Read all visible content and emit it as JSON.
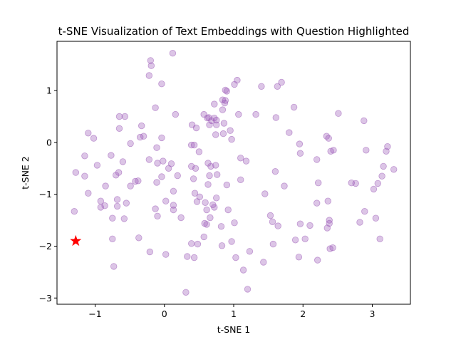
{
  "chart_data": {
    "type": "scatter",
    "title": "t-SNE Visualization of Text Embeddings with Question Highlighted",
    "xlabel": "t-SNE  1",
    "ylabel": "t-SNE  2",
    "xlim": [
      -1.55,
      3.55
    ],
    "ylim": [
      -3.12,
      1.95
    ],
    "xticks": [
      -1,
      0,
      1,
      2,
      3
    ],
    "yticks": [
      -3,
      -2,
      -1,
      0,
      1
    ],
    "grid": false,
    "legend": "none",
    "colors": {
      "points": "#9b59b6",
      "highlight": "#ff0000"
    },
    "series": [
      {
        "marker": "circle",
        "points": [
          [
            0.12,
            1.72
          ],
          [
            -0.2,
            1.58
          ],
          [
            -0.19,
            1.48
          ],
          [
            -0.22,
            1.29
          ],
          [
            -0.04,
            1.13
          ],
          [
            -0.13,
            0.67
          ],
          [
            0.16,
            0.54
          ],
          [
            -0.65,
            0.5
          ],
          [
            -0.57,
            0.5
          ],
          [
            -0.65,
            0.27
          ],
          [
            -0.33,
            0.32
          ],
          [
            -1.1,
            0.18
          ],
          [
            -1.02,
            0.08
          ],
          [
            -0.35,
            0.1
          ],
          [
            -0.3,
            0.12
          ],
          [
            -0.49,
            -0.02
          ],
          [
            -0.04,
            0.09
          ],
          [
            -0.11,
            -0.1
          ],
          [
            -0.22,
            -0.33
          ],
          [
            -1.15,
            -0.26
          ],
          [
            -0.77,
            -0.25
          ],
          [
            -0.6,
            -0.37
          ],
          [
            -0.1,
            -0.4
          ],
          [
            -0.02,
            -0.36
          ],
          [
            0.1,
            -0.41
          ],
          [
            -0.97,
            -0.44
          ],
          [
            -1.28,
            -0.58
          ],
          [
            -0.66,
            -0.58
          ],
          [
            -0.7,
            -0.63
          ],
          [
            -1.15,
            -0.65
          ],
          [
            -0.04,
            -0.66
          ],
          [
            0.06,
            -0.5
          ],
          [
            0.19,
            -0.64
          ],
          [
            -0.38,
            -0.74
          ],
          [
            -0.42,
            -0.75
          ],
          [
            -0.85,
            -0.84
          ],
          [
            -0.49,
            -0.84
          ],
          [
            -0.11,
            -0.77
          ],
          [
            -1.1,
            -0.98
          ],
          [
            0.13,
            -0.94
          ],
          [
            -0.68,
            -1.1
          ],
          [
            -0.92,
            -1.13
          ],
          [
            -0.55,
            -1.17
          ],
          [
            0.02,
            -1.13
          ],
          [
            -0.92,
            -1.25
          ],
          [
            -0.86,
            -1.22
          ],
          [
            -0.68,
            -1.23
          ],
          [
            0.13,
            -1.21
          ],
          [
            -0.13,
            -1.28
          ],
          [
            -1.3,
            -1.33
          ],
          [
            -0.75,
            -1.46
          ],
          [
            -0.58,
            -1.47
          ],
          [
            -0.1,
            -1.42
          ],
          [
            0.13,
            -1.3
          ],
          [
            0.24,
            -1.45
          ],
          [
            -0.37,
            -1.84
          ],
          [
            -0.75,
            -1.86
          ],
          [
            -0.21,
            -2.11
          ],
          [
            0.02,
            -2.16
          ],
          [
            -0.73,
            -2.39
          ],
          [
            0.33,
            -2.2
          ],
          [
            0.43,
            -2.22
          ],
          [
            0.31,
            -2.89
          ],
          [
            0.4,
            0.34
          ],
          [
            0.46,
            0.28
          ],
          [
            0.43,
            -0.05
          ],
          [
            0.39,
            -0.05
          ],
          [
            0.5,
            -0.18
          ],
          [
            0.39,
            -0.46
          ],
          [
            0.45,
            -0.5
          ],
          [
            0.42,
            -0.7
          ],
          [
            0.44,
            -0.98
          ],
          [
            0.51,
            -1.05
          ],
          [
            0.47,
            -1.14
          ],
          [
            0.39,
            -1.95
          ],
          [
            0.48,
            -1.96
          ],
          [
            0.57,
            0.54
          ],
          [
            0.62,
            0.47
          ],
          [
            0.64,
            0.48
          ],
          [
            0.65,
            0.34
          ],
          [
            0.72,
            0.47
          ],
          [
            0.68,
            0.42
          ],
          [
            0.72,
            0.74
          ],
          [
            0.75,
            0.43
          ],
          [
            0.75,
            0.34
          ],
          [
            0.86,
            0.37
          ],
          [
            0.84,
            0.63
          ],
          [
            0.84,
            0.82
          ],
          [
            0.88,
            0.81
          ],
          [
            0.88,
            1.01
          ],
          [
            0.9,
            0.99
          ],
          [
            0.87,
            0.76
          ],
          [
            0.74,
            0.15
          ],
          [
            0.85,
            0.17
          ],
          [
            0.95,
            0.23
          ],
          [
            0.97,
            0.06
          ],
          [
            1.01,
            1.12
          ],
          [
            1.05,
            1.2
          ],
          [
            1.07,
            0.54
          ],
          [
            1.1,
            -0.3
          ],
          [
            1.18,
            -0.36
          ],
          [
            1.1,
            -0.72
          ],
          [
            0.9,
            -0.82
          ],
          [
            0.63,
            -0.4
          ],
          [
            0.67,
            -0.46
          ],
          [
            0.74,
            -0.44
          ],
          [
            0.76,
            -0.62
          ],
          [
            0.65,
            -0.64
          ],
          [
            0.63,
            -0.81
          ],
          [
            0.75,
            -1.07
          ],
          [
            0.59,
            -1.16
          ],
          [
            0.7,
            -1.2
          ],
          [
            0.72,
            -1.25
          ],
          [
            0.61,
            -1.3
          ],
          [
            0.66,
            -1.45
          ],
          [
            0.61,
            -1.58
          ],
          [
            0.58,
            -1.56
          ],
          [
            0.82,
            -1.62
          ],
          [
            0.92,
            -1.3
          ],
          [
            0.57,
            -1.82
          ],
          [
            0.83,
            -1.99
          ],
          [
            0.97,
            -1.91
          ],
          [
            1.01,
            -1.55
          ],
          [
            1.03,
            -2.22
          ],
          [
            1.23,
            -2.1
          ],
          [
            1.14,
            -2.46
          ],
          [
            1.2,
            -2.83
          ],
          [
            1.43,
            -2.31
          ],
          [
            1.32,
            0.54
          ],
          [
            1.4,
            1.08
          ],
          [
            1.61,
            0.48
          ],
          [
            1.63,
            1.08
          ],
          [
            1.69,
            1.16
          ],
          [
            1.8,
            0.19
          ],
          [
            1.87,
            0.68
          ],
          [
            1.95,
            -0.03
          ],
          [
            1.96,
            -0.21
          ],
          [
            1.6,
            -0.56
          ],
          [
            1.73,
            -0.84
          ],
          [
            1.45,
            -0.99
          ],
          [
            1.53,
            -1.41
          ],
          [
            1.56,
            -1.53
          ],
          [
            1.64,
            -1.61
          ],
          [
            1.57,
            -1.96
          ],
          [
            1.89,
            -1.88
          ],
          [
            1.96,
            -1.57
          ],
          [
            2.03,
            -1.86
          ],
          [
            2.1,
            -1.6
          ],
          [
            1.94,
            -2.21
          ],
          [
            2.21,
            -2.27
          ],
          [
            2.2,
            -1.17
          ],
          [
            2.22,
            -0.78
          ],
          [
            2.2,
            -0.33
          ],
          [
            2.34,
            0.12
          ],
          [
            2.37,
            0.08
          ],
          [
            2.51,
            0.56
          ],
          [
            2.4,
            -0.17
          ],
          [
            2.44,
            -0.15
          ],
          [
            2.36,
            -1.13
          ],
          [
            2.38,
            -1.5
          ],
          [
            2.38,
            -1.56
          ],
          [
            2.35,
            -1.65
          ],
          [
            2.39,
            -2.05
          ],
          [
            2.43,
            -2.03
          ],
          [
            2.82,
            -1.54
          ],
          [
            2.88,
            0.42
          ],
          [
            2.91,
            -0.15
          ],
          [
            2.7,
            -0.78
          ],
          [
            2.76,
            -0.79
          ],
          [
            2.89,
            -1.33
          ],
          [
            3.02,
            -0.9
          ],
          [
            3.08,
            -0.79
          ],
          [
            3.05,
            -1.46
          ],
          [
            3.11,
            -1.86
          ],
          [
            3.14,
            -0.65
          ],
          [
            3.16,
            -0.46
          ],
          [
            3.2,
            -0.17
          ],
          [
            3.22,
            -0.08
          ],
          [
            3.31,
            -0.52
          ]
        ]
      },
      {
        "marker": "star",
        "points": [
          [
            -1.28,
            -1.9
          ]
        ]
      }
    ]
  }
}
